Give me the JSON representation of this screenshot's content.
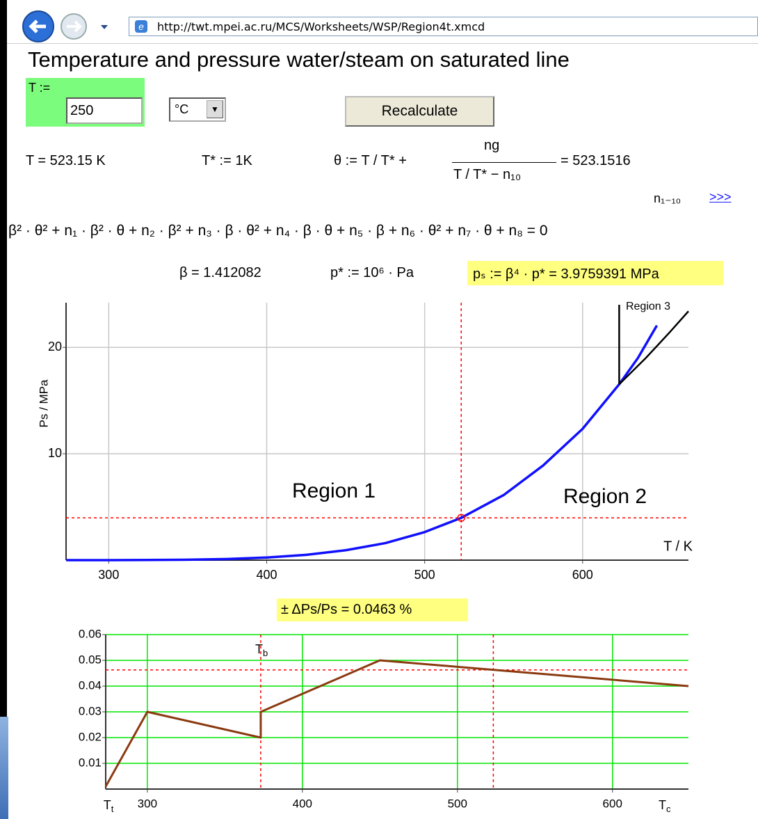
{
  "browser": {
    "url": "http://twt.mpei.ac.ru/MCS/Worksheets/WSP/Region4t.xmcd"
  },
  "title": "Temperature and pressure water/steam on saturated line",
  "input": {
    "label": "T :=",
    "value": "250",
    "unit": "°C",
    "button": "Recalculate"
  },
  "formulas": {
    "t_kelvin": "T = 523.15 K",
    "t_star": "T* := 1K",
    "theta_lhs": "θ := T / T* +",
    "theta_num": "ng",
    "theta_den": "T / T* − n₁₀",
    "theta_rhs": "= 523.1516",
    "n_label": "n₁₋₁₀",
    "n_link": ">>>",
    "equation": "β² · θ² + n₁ · β² · θ + n₂ · β² + n₃ · β · θ² + n₄ · β · θ + n₅ · β + n₆ · θ² + n₇ · θ + n₈ = 0",
    "beta": "β = 1.412082",
    "p_star": "p* := 10⁶ · Pa",
    "ps": "pₛ := β⁴ · p* = 3.9759391 MPa"
  },
  "chart_pressure": {
    "type": "line",
    "xlabel": "T / K",
    "ylabel": "Ps / MPa",
    "xlim": [
      273,
      667
    ],
    "ylim": [
      0,
      24.2
    ],
    "xticks": [
      300,
      400,
      500,
      600
    ],
    "yticks": [
      10,
      20
    ],
    "grid": true,
    "grid_color": "#c8c8c8",
    "series": [
      {
        "color": "#1010ff",
        "x": [
          273.15,
          300,
          325,
          350,
          375,
          400,
          425,
          450,
          475,
          500,
          523.15,
          550,
          575,
          600,
          623.15,
          635,
          647
        ],
        "values": [
          0.000612,
          0.00354,
          0.0134,
          0.0417,
          0.1084,
          0.2456,
          0.5,
          0.932,
          1.6,
          2.639,
          3.976,
          6.117,
          8.9,
          12.345,
          16.53,
          19.0,
          22.06
        ]
      },
      {
        "color": "#000000",
        "x": [
          623.15,
          640,
          655,
          667
        ],
        "values": [
          16.53,
          19.0,
          21.4,
          23.4
        ]
      },
      {
        "color": "#000000",
        "x": [
          623.15,
          623.15
        ],
        "values": [
          16.53,
          24
        ]
      }
    ],
    "state": {
      "x": 523.15,
      "y": 3.9759391,
      "color": "#ff0000"
    },
    "region_labels": [
      "Region 1",
      "Region 2",
      "Region 3"
    ]
  },
  "chart_error": {
    "type": "line",
    "title": "± ΔPs/Ps = 0.0463 %",
    "xlim": [
      273.16,
      649
    ],
    "ylim": [
      0,
      0.06
    ],
    "xticks": [
      300,
      400,
      500,
      600
    ],
    "yticks": [
      0.01,
      0.02,
      0.03,
      0.04,
      0.05,
      0.06
    ],
    "grid": true,
    "grid_color": "#00e600",
    "series": [
      {
        "color": "#8b3a10",
        "x": [
          273.16,
          300,
          373.15,
          373.15,
          450,
          649
        ],
        "values": [
          0.001,
          0.03,
          0.02,
          0.03,
          0.05,
          0.04
        ]
      }
    ],
    "ref_x": [
      373.15,
      523.15
    ],
    "ref_y": 0.0463,
    "ref_color": "#ff0000",
    "x_markers": [
      {
        "value": 273.16,
        "label": "T",
        "sub": "t"
      },
      {
        "value": 373.15,
        "label": "T",
        "sub": "b"
      },
      {
        "value": 647.1,
        "label": "T",
        "sub": "c"
      }
    ]
  }
}
